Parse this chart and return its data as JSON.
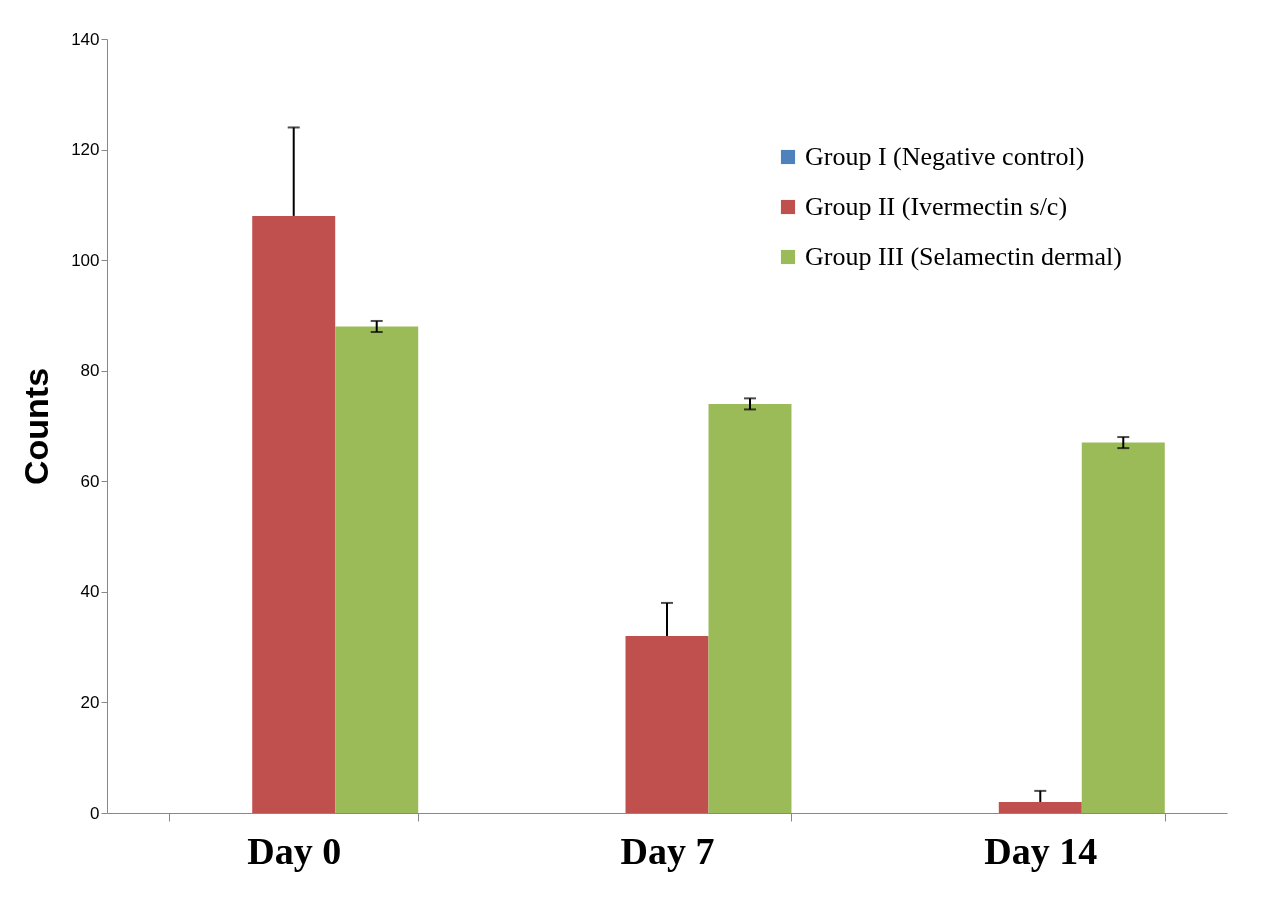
{
  "chart_data": {
    "type": "bar",
    "ylabel": "Counts",
    "categories": [
      "Day 0",
      "Day 7",
      "Day 14"
    ],
    "series": [
      {
        "name": "Group I (Negative control)",
        "color": "#4f81bd",
        "values": [
          0,
          0,
          0
        ]
      },
      {
        "name": "Group II (Ivermectin s/c)",
        "color": "#c0504d",
        "values": [
          108,
          32,
          2
        ],
        "errors": [
          [
            108,
            124
          ],
          [
            32,
            38
          ],
          [
            2,
            4
          ]
        ]
      },
      {
        "name": "Group III (Selamectin dermal)",
        "color": "#9bbb59",
        "values": [
          88,
          74,
          67
        ],
        "errors": [
          1,
          1,
          1
        ]
      }
    ],
    "ylim": [
      0,
      140
    ],
    "yticks": [
      0,
      20,
      40,
      60,
      80,
      100,
      120,
      140
    ],
    "grid": false,
    "legend": "top right"
  }
}
